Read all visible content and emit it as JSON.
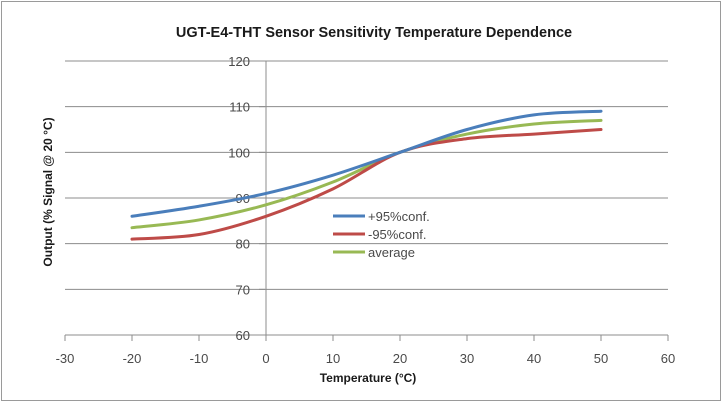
{
  "chart_data": {
    "type": "line",
    "title": "UGT-E4-THT Sensor Sensitivity Temperature Dependence",
    "xlabel": "Temperature (°C)",
    "ylabel": "Output (% Signal @ 20 °C)",
    "xlim": [
      -30,
      60
    ],
    "ylim": [
      60,
      120
    ],
    "xticks": [
      -30,
      -20,
      -10,
      0,
      10,
      20,
      30,
      40,
      50,
      60
    ],
    "yticks": [
      60,
      70,
      80,
      90,
      100,
      110,
      120
    ],
    "grid": "horizontal",
    "legend_position": "center",
    "x": [
      -20,
      -10,
      0,
      10,
      20,
      30,
      40,
      50
    ],
    "series": [
      {
        "name": "+95%conf.",
        "color": "#4a7ebb",
        "values": [
          86,
          88.2,
          91,
          95,
          100,
          105,
          108.2,
          109
        ]
      },
      {
        "name": "-95%conf.",
        "color": "#be4b48",
        "values": [
          81,
          82,
          86,
          92,
          100,
          103,
          104,
          105
        ]
      },
      {
        "name": "average",
        "color": "#98b954",
        "values": [
          83.5,
          85.2,
          88.5,
          93.5,
          100,
          104,
          106.2,
          107
        ]
      }
    ]
  }
}
